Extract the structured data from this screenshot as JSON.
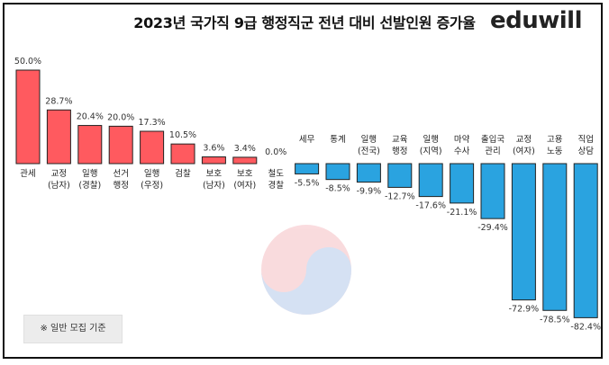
{
  "title": "2023년 국가직 9급 행정직군 전년 대비 선발인원 증가율",
  "brand": "eduwill",
  "note": "※ 일반 모집 기준",
  "colors": {
    "positive": "#ff5a5f",
    "negative": "#2aa3e0"
  },
  "chart_data": {
    "type": "bar",
    "title": "2023년 국가직 9급 행정직군 전년 대비 선발인원 증가율",
    "categories": [
      [
        "관세"
      ],
      [
        "교정",
        "(남자)"
      ],
      [
        "일행",
        "(경찰)"
      ],
      [
        "선거",
        "행정"
      ],
      [
        "일행",
        "(우정)"
      ],
      [
        "검찰"
      ],
      [
        "보호",
        "(남자)"
      ],
      [
        "보호",
        "(여자)"
      ],
      [
        "철도",
        "경찰"
      ],
      [
        "세무"
      ],
      [
        "통계"
      ],
      [
        "일행",
        "(전국)"
      ],
      [
        "교육",
        "행정"
      ],
      [
        "일행",
        "(지역)"
      ],
      [
        "마약",
        "수사"
      ],
      [
        "출입국",
        "관리"
      ],
      [
        "교정",
        "(여자)"
      ],
      [
        "고용",
        "노동"
      ],
      [
        "직업",
        "상담"
      ]
    ],
    "values": [
      50.0,
      28.7,
      20.4,
      20.0,
      17.3,
      10.5,
      3.6,
      3.4,
      0.0,
      -5.5,
      -8.5,
      -9.9,
      -12.7,
      -17.6,
      -21.1,
      -29.4,
      -72.9,
      -78.5,
      -82.4
    ],
    "value_labels": [
      "50.0%",
      "28.7%",
      "20.4%",
      "20.0%",
      "17.3%",
      "10.5%",
      "3.6%",
      "3.4%",
      "0.0%",
      "-5.5%",
      "-8.5%",
      "-9.9%",
      "-12.7%",
      "-17.6%",
      "-21.1%",
      "-29.4%",
      "-72.9%",
      "-78.5%",
      "-82.4%"
    ],
    "unit": "%"
  }
}
